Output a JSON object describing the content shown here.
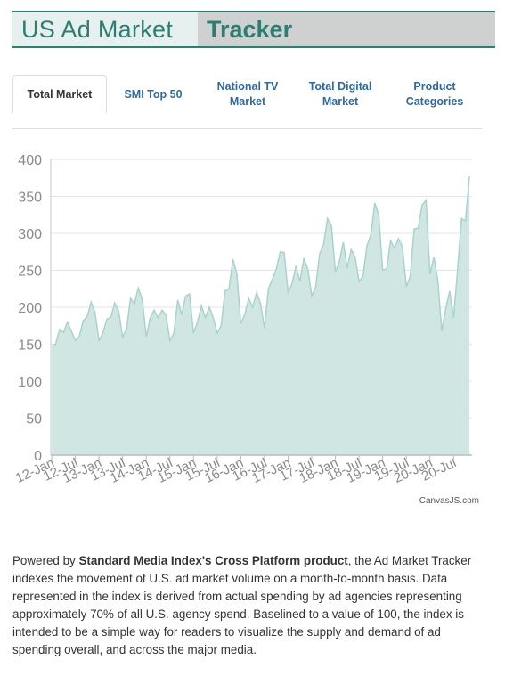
{
  "header": {
    "title_left": "US Ad Market",
    "title_right": "Tracker"
  },
  "tabs": [
    {
      "label": "Total Market",
      "active": true
    },
    {
      "label": "SMI Top 50",
      "active": false
    },
    {
      "label": "National TV Market",
      "active": false
    },
    {
      "label": "Total Digital Market",
      "active": false
    },
    {
      "label": "Product Categories",
      "active": false
    }
  ],
  "credit": "CanvasJS.com",
  "description": {
    "pre": "Powered by ",
    "bold": "Standard Media Index's Cross Platform product",
    "post": ", the Ad Market Tracker indexes the movement of U.S. ad market volume on a month-to-month basis. Data represented in the index is derived from actual spending by ad agencies representing approximately 70% of all U.S. agency spend. Baselined to a value of 100, the index is intended to be a simple way for readers to visualize the supply and demand of ad spending overall, and across the major media."
  },
  "colors": {
    "area_fill": "#cfe6e2",
    "area_line": "#a9d3cc",
    "accent": "#2e7d72",
    "tab_link": "#2b6aa3"
  },
  "chart_data": {
    "type": "area",
    "ylim": [
      0,
      400
    ],
    "yticks": [
      0,
      50,
      100,
      150,
      200,
      250,
      300,
      350,
      400
    ],
    "xticks": [
      "12-Jan",
      "12-Jul",
      "13-Jan",
      "13-Jul",
      "14-Jan",
      "14-Jul",
      "15-Jan",
      "15-Jul",
      "16-Jan",
      "16-Jul",
      "17-Jan",
      "17-Jul",
      "18-Jan",
      "18-Jul",
      "19-Jan",
      "19-Jul",
      "20-Jan",
      "20-Jul"
    ],
    "x_start": "2012-01",
    "grid": true,
    "values": [
      147,
      150,
      170,
      166,
      180,
      168,
      155,
      160,
      182,
      187,
      207,
      193,
      155,
      165,
      184,
      186,
      206,
      195,
      160,
      170,
      212,
      205,
      226,
      210,
      160,
      186,
      196,
      186,
      196,
      190,
      155,
      165,
      210,
      190,
      215,
      218,
      165,
      180,
      202,
      186,
      200,
      186,
      165,
      175,
      222,
      225,
      265,
      245,
      178,
      190,
      212,
      200,
      220,
      205,
      172,
      225,
      238,
      252,
      275,
      274,
      220,
      232,
      256,
      235,
      266,
      252,
      215,
      228,
      272,
      285,
      320,
      310,
      248,
      262,
      288,
      253,
      278,
      268,
      235,
      242,
      283,
      298,
      341,
      325,
      250,
      252,
      290,
      280,
      293,
      282,
      228,
      242,
      306,
      307,
      338,
      345,
      245,
      268,
      236,
      168,
      198,
      222,
      186,
      250,
      320,
      317,
      377
    ]
  }
}
